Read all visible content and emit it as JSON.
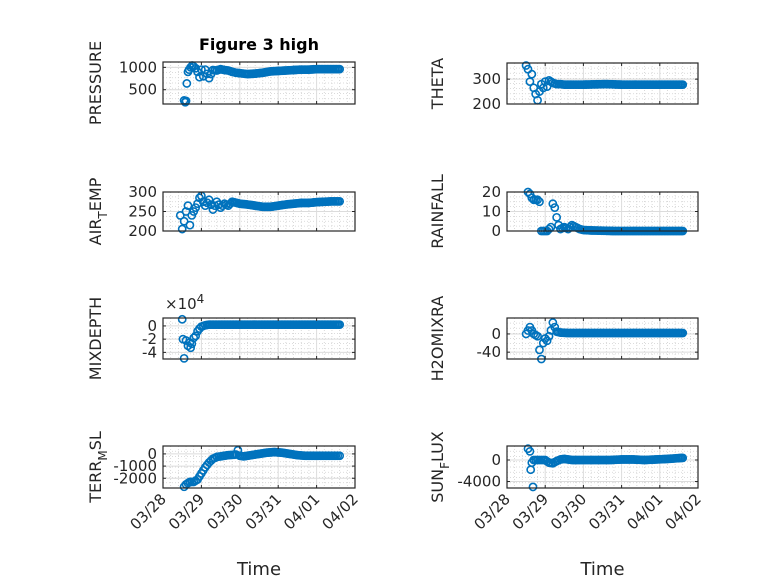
{
  "figure_title": "Figure 3 high",
  "marker_color": "#0072BD",
  "chart_data": [
    {
      "type": "scatter",
      "id": "pressure",
      "title": "Figure 3 high",
      "ylabel": "PRESSURE",
      "xlabel": "",
      "ylim": [
        180,
        1120
      ],
      "yticks": [
        500,
        1000
      ],
      "ytick_labels": [
        "500",
        "1000"
      ],
      "exponent_label": "",
      "grid": true,
      "x": [
        0.55,
        0.58,
        0.6,
        0.62,
        0.65,
        0.68,
        0.72,
        0.76,
        0.8,
        0.85,
        0.9,
        0.95,
        1.0,
        1.05,
        1.1,
        1.2,
        1.3,
        1.4,
        1.5,
        1.6,
        1.7,
        1.8,
        1.9,
        2.0,
        2.1,
        2.2,
        2.4,
        2.6,
        2.8,
        3.0,
        3.2,
        3.4,
        3.6,
        3.8,
        4.0,
        4.2,
        4.4,
        4.6
      ],
      "y": [
        260,
        220,
        250,
        640,
        900,
        950,
        1000,
        1040,
        1020,
        980,
        900,
        780,
        950,
        800,
        950,
        760,
        940,
        930,
        960,
        940,
        930,
        900,
        880,
        870,
        860,
        850,
        860,
        880,
        910,
        920,
        930,
        940,
        950,
        950,
        960,
        960,
        960,
        960
      ]
    },
    {
      "type": "scatter",
      "id": "theta",
      "title": "",
      "ylabel": "THETA",
      "xlabel": "",
      "ylim": [
        200,
        365
      ],
      "yticks": [
        200,
        300
      ],
      "ytick_labels": [
        "200",
        "300"
      ],
      "exponent_label": "",
      "grid": true,
      "x": [
        0.5,
        0.55,
        0.6,
        0.65,
        0.7,
        0.75,
        0.8,
        0.85,
        0.9,
        0.95,
        1.0,
        1.05,
        1.1,
        1.2,
        1.3,
        1.4,
        1.5,
        1.7,
        2.0,
        2.3,
        2.6,
        3.0,
        3.4,
        3.8,
        4.2,
        4.6
      ],
      "y": [
        355,
        340,
        290,
        320,
        265,
        240,
        215,
        250,
        280,
        265,
        290,
        270,
        295,
        285,
        280,
        280,
        278,
        278,
        278,
        279,
        280,
        278,
        278,
        278,
        278,
        278
      ]
    },
    {
      "type": "scatter",
      "id": "air_temp",
      "title": "",
      "ylabel": "AIR_TEMP",
      "ylabel_display": [
        "AIR",
        "T",
        "EMP"
      ],
      "xlabel": "",
      "ylim": [
        200,
        300
      ],
      "yticks": [
        200,
        250,
        300
      ],
      "ytick_labels": [
        "200",
        "250",
        "300"
      ],
      "exponent_label": "",
      "grid": true,
      "x": [
        0.45,
        0.5,
        0.55,
        0.6,
        0.65,
        0.7,
        0.75,
        0.8,
        0.85,
        0.9,
        0.95,
        1.0,
        1.05,
        1.1,
        1.2,
        1.3,
        1.4,
        1.5,
        1.6,
        1.7,
        1.8,
        2.0,
        2.2,
        2.4,
        2.6,
        2.8,
        3.0,
        3.2,
        3.4,
        3.6,
        3.8,
        4.0,
        4.2,
        4.4,
        4.6
      ],
      "y": [
        240,
        205,
        225,
        250,
        265,
        215,
        240,
        250,
        260,
        270,
        285,
        290,
        275,
        265,
        280,
        255,
        275,
        260,
        270,
        265,
        275,
        270,
        268,
        265,
        262,
        262,
        265,
        268,
        270,
        272,
        272,
        274,
        275,
        276,
        276
      ]
    },
    {
      "type": "scatter",
      "id": "rainfall",
      "title": "",
      "ylabel": "RAINFALL",
      "xlabel": "",
      "ylim": [
        0,
        20
      ],
      "yticks": [
        0,
        10,
        20
      ],
      "ytick_labels": [
        "0",
        "10",
        "20"
      ],
      "exponent_label": "",
      "grid": true,
      "x": [
        0.55,
        0.6,
        0.65,
        0.7,
        0.75,
        0.8,
        0.85,
        0.9,
        0.95,
        1.0,
        1.05,
        1.1,
        1.15,
        1.2,
        1.25,
        1.3,
        1.35,
        1.4,
        1.5,
        1.6,
        1.7,
        1.8,
        1.9,
        2.0,
        2.2,
        2.4,
        2.6,
        2.8,
        3.0,
        3.2,
        3.4,
        3.6,
        3.8,
        4.0,
        4.2,
        4.4,
        4.6
      ],
      "y": [
        20,
        19,
        17,
        16,
        16,
        16,
        15,
        0,
        0,
        0,
        0,
        1,
        2,
        14,
        12,
        7,
        3,
        1,
        2,
        1,
        3,
        2,
        1,
        0.5,
        0.3,
        0.2,
        0.1,
        0,
        0,
        0,
        0,
        0,
        0,
        0,
        0,
        0,
        0
      ]
    },
    {
      "type": "scatter",
      "id": "mixdepth",
      "title": "",
      "ylabel": "MIXDEPTH",
      "xlabel": "",
      "ylim": [
        -5,
        1.2
      ],
      "yticks": [
        -4,
        -2,
        0
      ],
      "ytick_labels": [
        "-4",
        "-2",
        "0"
      ],
      "exponent_label": "×10^4",
      "grid": true,
      "x": [
        0.5,
        0.52,
        0.55,
        0.6,
        0.65,
        0.7,
        0.72,
        0.75,
        0.8,
        0.85,
        0.9,
        0.95,
        1.0,
        1.1,
        1.2,
        1.4,
        1.6,
        2.0,
        2.4,
        2.8,
        3.2,
        3.6,
        4.0,
        4.4,
        4.6
      ],
      "y": [
        1.0,
        -2.0,
        -4.9,
        -2.2,
        -3.0,
        -2.5,
        -3.3,
        -2.7,
        -1.8,
        -1.5,
        -0.8,
        -0.4,
        -0.1,
        0.1,
        0.2,
        0.2,
        0.2,
        0.2,
        0.2,
        0.2,
        0.2,
        0.2,
        0.2,
        0.2,
        0.2
      ]
    },
    {
      "type": "scatter",
      "id": "h2omixra",
      "title": "",
      "ylabel": "H2OMIXRA",
      "xlabel": "",
      "ylim": [
        -55,
        35
      ],
      "yticks": [
        -40,
        0
      ],
      "ytick_labels": [
        "-40",
        "0"
      ],
      "exponent_label": "",
      "grid": true,
      "x": [
        0.5,
        0.6,
        0.7,
        0.8,
        0.85,
        0.9,
        0.95,
        1.0,
        1.05,
        1.1,
        1.15,
        1.2,
        1.3,
        1.4,
        1.6,
        2.0,
        2.4,
        2.8,
        3.2,
        3.6,
        4.0,
        4.4,
        4.6
      ],
      "y": [
        0,
        15,
        0,
        -5,
        -35,
        -55,
        -20,
        -10,
        -15,
        -5,
        8,
        25,
        5,
        3,
        2,
        2,
        2,
        2,
        2,
        2,
        2,
        2,
        2
      ]
    },
    {
      "type": "scatter",
      "id": "terr_msl",
      "title": "",
      "ylabel": "TERR_MSL",
      "ylabel_display": [
        "TERR",
        "M",
        "SL"
      ],
      "xlabel": "Time",
      "ylim": [
        -2800,
        650
      ],
      "yticks": [
        -2000,
        -1000,
        0
      ],
      "ytick_labels": [
        "-2000",
        "-1000",
        "0"
      ],
      "exponent_label": "",
      "grid": true,
      "x": [
        0.55,
        0.6,
        0.7,
        0.8,
        0.9,
        1.0,
        1.1,
        1.2,
        1.3,
        1.4,
        1.5,
        1.6,
        1.7,
        1.8,
        1.9,
        1.95,
        2.0,
        2.1,
        2.3,
        2.5,
        2.7,
        2.9,
        3.1,
        3.3,
        3.5,
        3.7,
        3.9,
        4.1,
        4.3,
        4.5,
        4.6
      ],
      "y": [
        -2700,
        -2500,
        -2300,
        -2300,
        -2100,
        -1600,
        -1100,
        -700,
        -400,
        -250,
        -200,
        -150,
        -100,
        -80,
        -50,
        300,
        -150,
        -200,
        -100,
        0,
        100,
        150,
        100,
        0,
        -100,
        -150,
        -150,
        -150,
        -150,
        -150,
        -150
      ]
    },
    {
      "type": "scatter",
      "id": "sun_flux",
      "title": "",
      "ylabel": "SUN_FLUX",
      "ylabel_display": [
        "SUN",
        "F",
        "LUX"
      ],
      "xlabel": "Time",
      "ylim": [
        -5200,
        2600
      ],
      "yticks": [
        -4000,
        0
      ],
      "ytick_labels": [
        "-4000",
        "0"
      ],
      "exponent_label": "",
      "grid": true,
      "x": [
        0.55,
        0.6,
        0.62,
        0.65,
        0.68,
        0.7,
        0.8,
        0.9,
        1.0,
        1.1,
        1.2,
        1.3,
        1.4,
        1.5,
        1.7,
        1.9,
        2.1,
        2.4,
        2.7,
        3.0,
        3.3,
        3.6,
        3.9,
        4.2,
        4.4,
        4.6
      ],
      "y": [
        2100,
        1600,
        -1800,
        -500,
        -5000,
        0,
        0,
        0,
        0,
        -500,
        -600,
        -200,
        100,
        200,
        0,
        0,
        0,
        0,
        0,
        100,
        100,
        0,
        100,
        200,
        300,
        400
      ]
    }
  ],
  "x_axis": {
    "type": "datetime",
    "xlim_days_from_0328": [
      0,
      5
    ],
    "tick_labels": [
      "03/28",
      "03/29",
      "03/30",
      "03/31",
      "04/01",
      "04/02"
    ],
    "xlabel": "Time"
  }
}
